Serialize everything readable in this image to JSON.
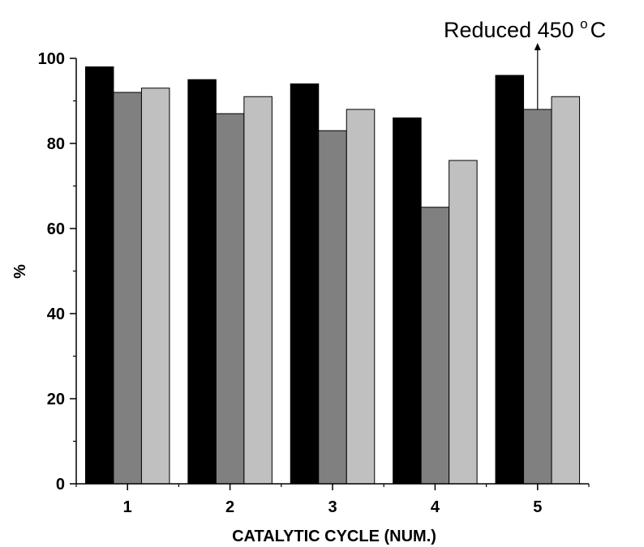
{
  "chart_data": {
    "type": "bar",
    "categories": [
      "1",
      "2",
      "3",
      "4",
      "5"
    ],
    "series": [
      {
        "color": "#000000",
        "values": [
          98,
          95,
          94,
          86,
          96
        ]
      },
      {
        "color": "#808080",
        "values": [
          92,
          87,
          83,
          65,
          88
        ]
      },
      {
        "color": "#c0c0c0",
        "values": [
          93,
          91,
          88,
          76,
          91
        ]
      }
    ],
    "xlabel": "CATALYTIC CYCLE (NUM.)",
    "ylabel": "%",
    "ylim": [
      0,
      100
    ],
    "yticks": [
      "0",
      "20",
      "40",
      "60",
      "80",
      "100"
    ],
    "yticks_values": [
      0,
      20,
      40,
      60,
      80,
      100
    ],
    "grid": false,
    "annotation": {
      "text": "Reduced 450 ",
      "superscript": "o",
      "unit": "C",
      "category": "5",
      "series_index": 1
    }
  }
}
